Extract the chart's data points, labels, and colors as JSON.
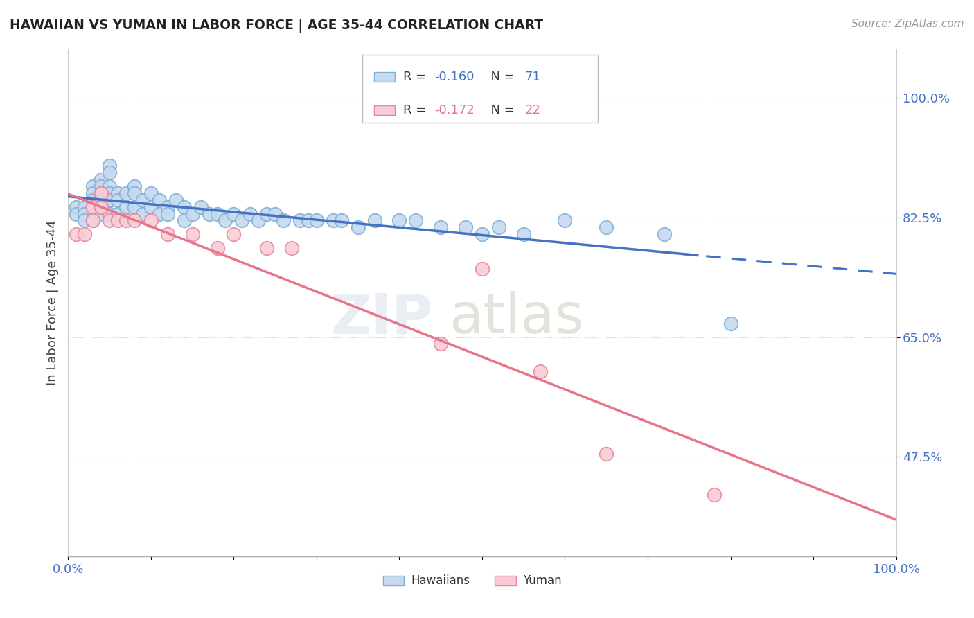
{
  "title": "HAWAIIAN VS YUMAN IN LABOR FORCE | AGE 35-44 CORRELATION CHART",
  "source": "Source: ZipAtlas.com",
  "ylabel": "In Labor Force | Age 35-44",
  "xlim": [
    0.0,
    1.0
  ],
  "ylim": [
    0.33,
    1.07
  ],
  "yticks": [
    0.475,
    0.65,
    0.825,
    1.0
  ],
  "ytick_labels": [
    "47.5%",
    "65.0%",
    "82.5%",
    "100.0%"
  ],
  "xticks": [
    0.0,
    0.1,
    0.2,
    0.3,
    0.4,
    0.5,
    0.6,
    0.7,
    0.8,
    0.9,
    1.0
  ],
  "hawaiian_color": "#c6d9f0",
  "hawaiian_edge": "#7bafd4",
  "yuman_color": "#f9ccd5",
  "yuman_edge": "#e8849a",
  "trend_blue": "#4472c4",
  "trend_pink": "#e8748a",
  "R_hawaiian": -0.16,
  "N_hawaiian": 71,
  "R_yuman": -0.172,
  "N_yuman": 22,
  "watermark_zip": "ZIP",
  "watermark_atlas": "atlas",
  "background_color": "#ffffff",
  "hawaiian_x": [
    0.01,
    0.01,
    0.02,
    0.02,
    0.02,
    0.03,
    0.03,
    0.03,
    0.03,
    0.03,
    0.04,
    0.04,
    0.04,
    0.04,
    0.04,
    0.04,
    0.05,
    0.05,
    0.05,
    0.05,
    0.05,
    0.05,
    0.06,
    0.06,
    0.06,
    0.07,
    0.07,
    0.08,
    0.08,
    0.08,
    0.09,
    0.09,
    0.1,
    0.1,
    0.11,
    0.11,
    0.12,
    0.12,
    0.13,
    0.14,
    0.14,
    0.15,
    0.16,
    0.17,
    0.18,
    0.19,
    0.2,
    0.21,
    0.22,
    0.23,
    0.24,
    0.25,
    0.26,
    0.28,
    0.29,
    0.3,
    0.32,
    0.33,
    0.35,
    0.37,
    0.4,
    0.42,
    0.45,
    0.48,
    0.5,
    0.52,
    0.55,
    0.6,
    0.65,
    0.72,
    0.8
  ],
  "hawaiian_y": [
    0.84,
    0.83,
    0.84,
    0.83,
    0.82,
    0.87,
    0.86,
    0.85,
    0.84,
    0.82,
    0.88,
    0.87,
    0.86,
    0.85,
    0.84,
    0.83,
    0.9,
    0.89,
    0.87,
    0.86,
    0.85,
    0.83,
    0.86,
    0.85,
    0.83,
    0.86,
    0.84,
    0.87,
    0.86,
    0.84,
    0.85,
    0.83,
    0.86,
    0.84,
    0.85,
    0.83,
    0.84,
    0.83,
    0.85,
    0.84,
    0.82,
    0.83,
    0.84,
    0.83,
    0.83,
    0.82,
    0.83,
    0.82,
    0.83,
    0.82,
    0.83,
    0.83,
    0.82,
    0.82,
    0.82,
    0.82,
    0.82,
    0.82,
    0.81,
    0.82,
    0.82,
    0.82,
    0.81,
    0.81,
    0.8,
    0.81,
    0.8,
    0.82,
    0.81,
    0.8,
    0.67
  ],
  "yuman_x": [
    0.01,
    0.02,
    0.03,
    0.03,
    0.04,
    0.04,
    0.05,
    0.06,
    0.07,
    0.08,
    0.1,
    0.12,
    0.15,
    0.18,
    0.2,
    0.24,
    0.27,
    0.45,
    0.5,
    0.57,
    0.65,
    0.78
  ],
  "yuman_y": [
    0.8,
    0.8,
    0.84,
    0.82,
    0.86,
    0.84,
    0.82,
    0.82,
    0.82,
    0.82,
    0.82,
    0.8,
    0.8,
    0.78,
    0.8,
    0.78,
    0.78,
    0.64,
    0.75,
    0.6,
    0.48,
    0.42
  ]
}
